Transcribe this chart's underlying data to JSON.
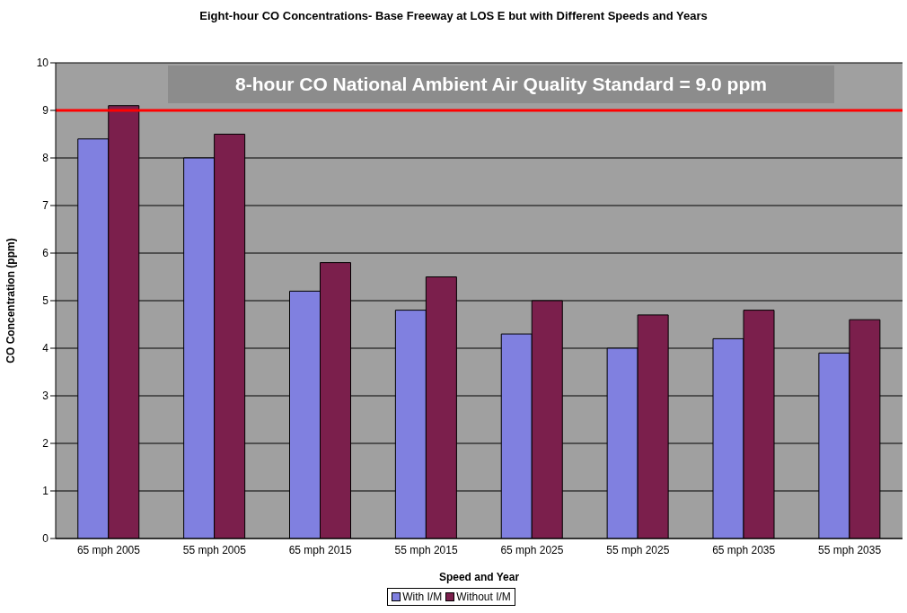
{
  "chart_data": {
    "type": "bar",
    "title": "Eight-hour CO Concentrations- Base Freeway at LOS E but with Different Speeds and Years",
    "xlabel": "Speed and Year",
    "ylabel": "CO Concentration (ppm)",
    "categories": [
      "65 mph 2005",
      "55 mph 2005",
      "65 mph 2015",
      "55 mph 2015",
      "65 mph 2025",
      "55 mph 2025",
      "65 mph 2035",
      "55 mph 2035"
    ],
    "series": [
      {
        "name": "With I/M",
        "color": "#8080e0",
        "values": [
          8.4,
          8.0,
          5.2,
          4.8,
          4.3,
          4.0,
          4.2,
          3.9
        ]
      },
      {
        "name": "Without I/M",
        "color": "#7b1f4c",
        "values": [
          9.1,
          8.5,
          5.8,
          5.5,
          5.0,
          4.7,
          4.8,
          4.6
        ]
      }
    ],
    "ylim": [
      0,
      10
    ],
    "yticks": [
      0,
      1,
      2,
      3,
      4,
      5,
      6,
      7,
      8,
      9,
      10
    ],
    "grid": "y",
    "legend": "bottom",
    "ref_lines": [
      {
        "axis": "y",
        "value": 9,
        "label": "8-hour CO National Ambient Air Quality Standard = 9.0 ppm",
        "color": "#ff0000"
      }
    ]
  }
}
